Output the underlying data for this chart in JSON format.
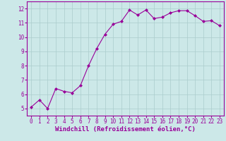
{
  "x": [
    0,
    1,
    2,
    3,
    4,
    5,
    6,
    7,
    8,
    9,
    10,
    11,
    12,
    13,
    14,
    15,
    16,
    17,
    18,
    19,
    20,
    21,
    22,
    23
  ],
  "y": [
    5.1,
    5.6,
    5.0,
    6.4,
    6.2,
    6.1,
    6.6,
    8.0,
    9.2,
    10.2,
    10.9,
    11.1,
    11.9,
    11.55,
    11.9,
    11.3,
    11.4,
    11.7,
    11.85,
    11.85,
    11.5,
    11.1,
    11.15,
    10.8
  ],
  "line_color": "#990099",
  "marker": "D",
  "marker_size": 2.0,
  "bg_color": "#cce8e8",
  "grid_color": "#aacccc",
  "xlabel": "Windchill (Refroidissement éolien,°C)",
  "text_color": "#990099",
  "ylabel_ticks": [
    5,
    6,
    7,
    8,
    9,
    10,
    11,
    12
  ],
  "xlim": [
    -0.5,
    23.5
  ],
  "ylim": [
    4.5,
    12.5
  ],
  "xticks": [
    0,
    1,
    2,
    3,
    4,
    5,
    6,
    7,
    8,
    9,
    10,
    11,
    12,
    13,
    14,
    15,
    16,
    17,
    18,
    19,
    20,
    21,
    22,
    23
  ],
  "tick_fontsize": 5.5,
  "xlabel_fontsize": 6.5
}
